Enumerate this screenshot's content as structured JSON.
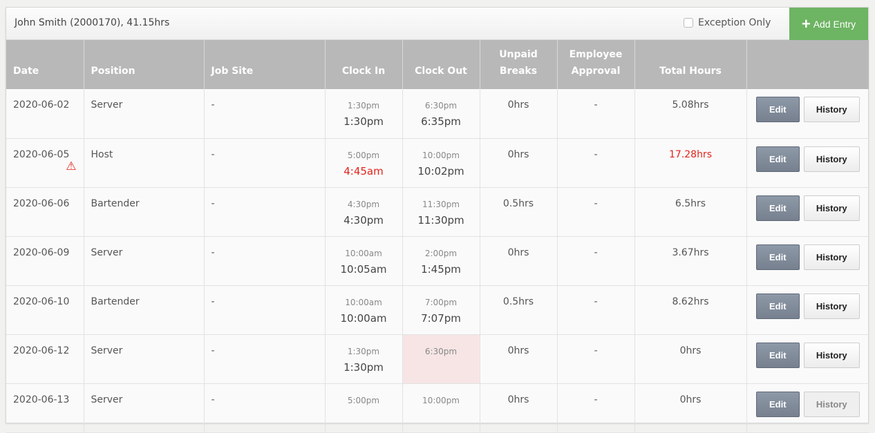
{
  "header": {
    "title": "John Smith (2000170), 41.15hrs",
    "exception_label": "Exception Only",
    "exception_checked": false,
    "add_label": "Add Entry"
  },
  "columns": [
    "Date",
    "Position",
    "Job Site",
    "Clock In",
    "Clock Out",
    "Unpaid Breaks",
    "Employee Approval",
    "Total Hours",
    ""
  ],
  "actions": {
    "edit": "Edit",
    "history": "History"
  },
  "colors": {
    "accent_green": "#6db463",
    "alert_red": "#e2231a",
    "missing_punch_bg": "#f7e5e5"
  },
  "rows": [
    {
      "date": "2020-06-02",
      "position": "Server",
      "job_site": "-",
      "in_sched": "1:30pm",
      "in_actual": "1:30pm",
      "out_sched": "6:30pm",
      "out_actual": "6:35pm",
      "breaks": "0hrs",
      "approval": "-",
      "total": "5.08hrs"
    },
    {
      "date": "2020-06-05",
      "position": "Host",
      "job_site": "-",
      "in_sched": "5:00pm",
      "in_actual": "4:45am",
      "out_sched": "10:00pm",
      "out_actual": "10:02pm",
      "breaks": "0hrs",
      "approval": "-",
      "total": "17.28hrs",
      "warning": true,
      "warning_icon": "warning-triangle-icon"
    },
    {
      "date": "2020-06-06",
      "position": "Bartender",
      "job_site": "-",
      "in_sched": "4:30pm",
      "in_actual": "4:30pm",
      "out_sched": "11:30pm",
      "out_actual": "11:30pm",
      "breaks": "0.5hrs",
      "approval": "-",
      "total": "6.5hrs"
    },
    {
      "date": "2020-06-09",
      "position": "Server",
      "job_site": "-",
      "in_sched": "10:00am",
      "in_actual": "10:05am",
      "out_sched": "2:00pm",
      "out_actual": "1:45pm",
      "breaks": "0hrs",
      "approval": "-",
      "total": "3.67hrs"
    },
    {
      "date": "2020-06-10",
      "position": "Bartender",
      "job_site": "-",
      "in_sched": "10:00am",
      "in_actual": "10:00am",
      "out_sched": "7:00pm",
      "out_actual": "7:07pm",
      "breaks": "0.5hrs",
      "approval": "-",
      "total": "8.62hrs"
    },
    {
      "date": "2020-06-12",
      "position": "Server",
      "job_site": "-",
      "in_sched": "1:30pm",
      "in_actual": "1:30pm",
      "out_sched": "6:30pm",
      "out_actual": "",
      "breaks": "0hrs",
      "approval": "-",
      "total": "0hrs",
      "missing_out": true
    },
    {
      "date": "2020-06-13",
      "position": "Server",
      "job_site": "-",
      "in_sched": "5:00pm",
      "in_actual": "",
      "out_sched": "10:00pm",
      "out_actual": "",
      "breaks": "0hrs",
      "approval": "-",
      "total": "0hrs",
      "history_disabled": true
    }
  ]
}
